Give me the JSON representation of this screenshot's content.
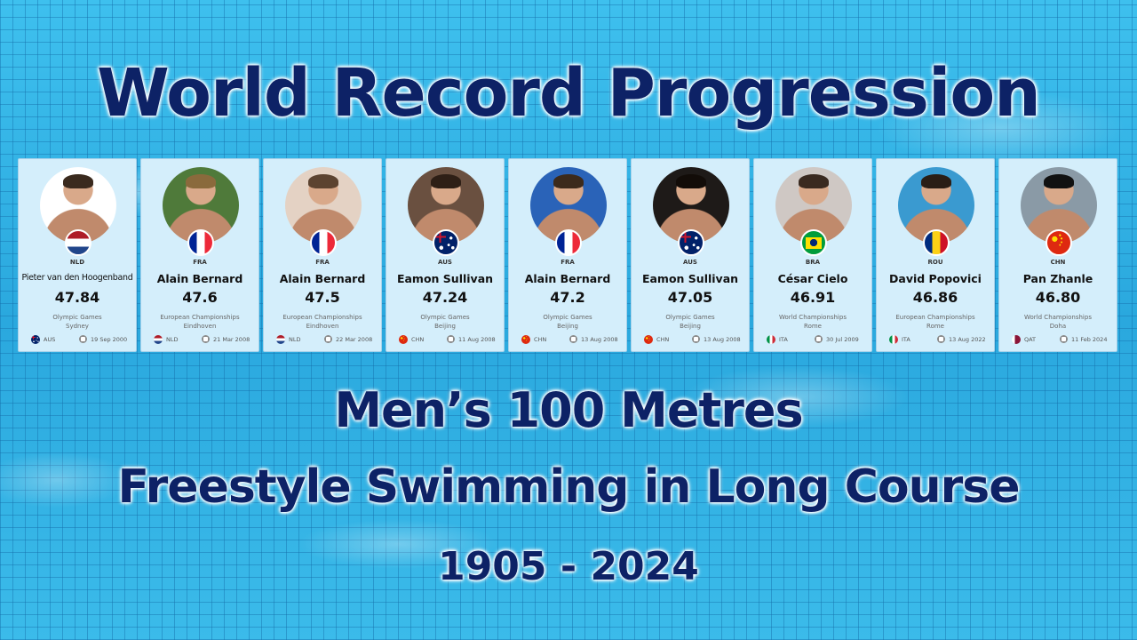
{
  "header": {
    "title": "World Record Progression",
    "subtitle_line1": "Men’s 100 Metres",
    "subtitle_line2": "Freestyle Swimming in Long Course",
    "years": "1905 - 2024"
  },
  "colors": {
    "title": "#0d2266",
    "card_bg": "#d4eefb",
    "pool": "#2eaee0"
  },
  "records": [
    {
      "code": "NLD",
      "name": "Pieter van den Hoogenband",
      "time": "47.84",
      "event": "Olympic Games",
      "city": "Sydney",
      "venue_code": "AUS",
      "date": "19 Sep 2000",
      "flag": "f-nld",
      "venue_flag": "f-aus",
      "photo_bg": "#ffffff",
      "hair": "#3a2a1e"
    },
    {
      "code": "FRA",
      "name": "Alain Bernard",
      "time": "47.6",
      "event": "European Championships",
      "city": "Eindhoven",
      "venue_code": "NLD",
      "date": "21 Mar 2008",
      "flag": "f-fra",
      "venue_flag": "f-nld",
      "photo_bg": "#4f7a3a",
      "hair": "#8a6a3c"
    },
    {
      "code": "FRA",
      "name": "Alain Bernard",
      "time": "47.5",
      "event": "European Championships",
      "city": "Eindhoven",
      "venue_code": "NLD",
      "date": "22 Mar 2008",
      "flag": "f-fra",
      "venue_flag": "f-nld",
      "photo_bg": "#e4d2c4",
      "hair": "#5c4330"
    },
    {
      "code": "AUS",
      "name": "Eamon Sullivan",
      "time": "47.24",
      "event": "Olympic Games",
      "city": "Beijing",
      "venue_code": "CHN",
      "date": "11 Aug 2008",
      "flag": "f-aus",
      "venue_flag": "f-chn",
      "photo_bg": "#6a5040",
      "hair": "#2e1f16"
    },
    {
      "code": "FRA",
      "name": "Alain Bernard",
      "time": "47.2",
      "event": "Olympic Games",
      "city": "Beijing",
      "venue_code": "CHN",
      "date": "13 Aug 2008",
      "flag": "f-fra",
      "venue_flag": "f-chn",
      "photo_bg": "#2a63b8",
      "hair": "#3c2a1c"
    },
    {
      "code": "AUS",
      "name": "Eamon Sullivan",
      "time": "47.05",
      "event": "Olympic Games",
      "city": "Beijing",
      "venue_code": "CHN",
      "date": "13 Aug 2008",
      "flag": "f-aus",
      "venue_flag": "f-chn",
      "photo_bg": "#1e1a18",
      "hair": "#120c08"
    },
    {
      "code": "BRA",
      "name": "César Cielo",
      "time": "46.91",
      "event": "World Championships",
      "city": "Rome",
      "venue_code": "ITA",
      "date": "30 Jul 2009",
      "flag": "f-bra",
      "venue_flag": "f-ita",
      "photo_bg": "#cfc8c4",
      "hair": "#3a2a20"
    },
    {
      "code": "ROU",
      "name": "David Popovici",
      "time": "46.86",
      "event": "European Championships",
      "city": "Rome",
      "venue_code": "ITA",
      "date": "13 Aug 2022",
      "flag": "f-rou",
      "venue_flag": "f-ita",
      "photo_bg": "#3a9ad0",
      "hair": "#2a1e16"
    },
    {
      "code": "CHN",
      "name": "Pan Zhanle",
      "time": "46.80",
      "event": "World Championships",
      "city": "Doha",
      "venue_code": "QAT",
      "date": "11 Feb 2024",
      "flag": "f-chn",
      "venue_flag": "f-qat",
      "photo_bg": "#8a9aa6",
      "hair": "#111111"
    }
  ]
}
